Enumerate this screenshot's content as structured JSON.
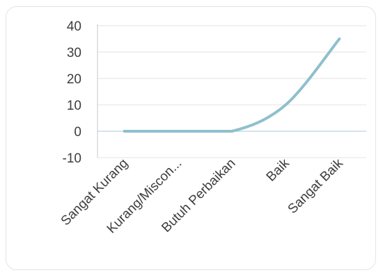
{
  "chart_data": {
    "type": "line",
    "title": "",
    "xlabel": "",
    "ylabel": "",
    "categories": [
      "Sangat Kurang",
      "Kurang/Miscon...",
      "Butuh Perbaikan",
      "Baik",
      "Sangat Baik"
    ],
    "series": [
      {
        "values": [
          0,
          0,
          0,
          10,
          35
        ],
        "smooth": true
      }
    ],
    "yticks": [
      "-10",
      "0",
      "10",
      "20",
      "30",
      "40"
    ],
    "ylim": [
      -10,
      40
    ],
    "grid": true,
    "legend": "none",
    "colors": {
      "line": "#8fbfcc",
      "grid": "#e3e3e3",
      "zero_line": "#b8d3e6",
      "axis": "#c9c9c9",
      "frame": "#dde5ea",
      "text": "#3d3d3d"
    }
  }
}
